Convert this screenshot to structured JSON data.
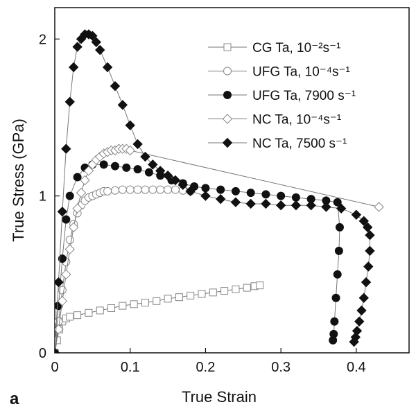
{
  "panel_label": "a",
  "chart_data": {
    "type": "scatter",
    "xlabel": "True Strain",
    "ylabel": "True Stress (GPa)",
    "xlim": [
      0,
      0.47
    ],
    "ylim": [
      0,
      2.2
    ],
    "xticks": [
      0,
      0.1,
      0.2,
      0.3,
      0.4
    ],
    "xtick_labels": [
      "0",
      "0.1",
      "0.2",
      "0.3",
      "0.4"
    ],
    "yticks": [
      0,
      1,
      2
    ],
    "ytick_labels": [
      "0",
      "1",
      "2"
    ],
    "grid": false,
    "legend_position": "top-right",
    "series": [
      {
        "name": "CG Ta, 10⁻²s⁻¹",
        "marker": "square-open",
        "x": [
          0.0,
          0.003,
          0.006,
          0.01,
          0.015,
          0.02,
          0.03,
          0.045,
          0.06,
          0.075,
          0.09,
          0.105,
          0.12,
          0.135,
          0.15,
          0.165,
          0.18,
          0.195,
          0.21,
          0.225,
          0.24,
          0.255,
          0.265,
          0.272
        ],
        "y": [
          0.0,
          0.08,
          0.15,
          0.2,
          0.22,
          0.23,
          0.24,
          0.255,
          0.27,
          0.285,
          0.3,
          0.31,
          0.32,
          0.33,
          0.345,
          0.355,
          0.365,
          0.375,
          0.385,
          0.395,
          0.405,
          0.415,
          0.425,
          0.43
        ]
      },
      {
        "name": "UFG Ta, 10⁻⁴s⁻¹",
        "marker": "circle-open",
        "x": [
          0.0,
          0.005,
          0.01,
          0.015,
          0.02,
          0.025,
          0.03,
          0.035,
          0.04,
          0.045,
          0.05,
          0.055,
          0.06,
          0.065,
          0.07,
          0.08,
          0.09,
          0.1,
          0.11,
          0.12,
          0.13,
          0.14,
          0.15,
          0.16,
          0.17,
          0.18
        ],
        "y": [
          0.0,
          0.2,
          0.4,
          0.58,
          0.72,
          0.82,
          0.89,
          0.94,
          0.97,
          0.99,
          1.0,
          1.01,
          1.02,
          1.03,
          1.03,
          1.035,
          1.04,
          1.04,
          1.04,
          1.04,
          1.04,
          1.04,
          1.04,
          1.04,
          1.035,
          1.03
        ]
      },
      {
        "name": "UFG Ta, 7900 s⁻¹",
        "marker": "circle-filled",
        "x": [
          0.0,
          0.005,
          0.01,
          0.015,
          0.02,
          0.03,
          0.04,
          0.05,
          0.065,
          0.08,
          0.095,
          0.11,
          0.125,
          0.14,
          0.155,
          0.17,
          0.185,
          0.2,
          0.22,
          0.24,
          0.26,
          0.28,
          0.3,
          0.32,
          0.34,
          0.36,
          0.375,
          0.378,
          0.377,
          0.375,
          0.373,
          0.371,
          0.37,
          0.369
        ],
        "y": [
          0.0,
          0.3,
          0.6,
          0.85,
          1.0,
          1.12,
          1.18,
          1.2,
          1.2,
          1.19,
          1.18,
          1.17,
          1.15,
          1.13,
          1.1,
          1.08,
          1.06,
          1.05,
          1.04,
          1.03,
          1.02,
          1.01,
          1.0,
          0.99,
          0.98,
          0.97,
          0.96,
          0.8,
          0.65,
          0.5,
          0.35,
          0.2,
          0.12,
          0.08
        ]
      },
      {
        "name": "NC Ta, 10⁻⁴s⁻¹",
        "marker": "diamond-open",
        "x": [
          0.0,
          0.005,
          0.01,
          0.015,
          0.02,
          0.025,
          0.03,
          0.035,
          0.04,
          0.045,
          0.05,
          0.055,
          0.06,
          0.065,
          0.07,
          0.075,
          0.08,
          0.085,
          0.09,
          0.095,
          0.1,
          0.43
        ],
        "y": [
          0.0,
          0.15,
          0.33,
          0.5,
          0.66,
          0.8,
          0.92,
          1.02,
          1.1,
          1.16,
          1.2,
          1.23,
          1.25,
          1.27,
          1.28,
          1.29,
          1.29,
          1.3,
          1.3,
          1.3,
          1.29,
          0.93
        ]
      },
      {
        "name": "NC Ta, 7500 s⁻¹",
        "marker": "diamond-filled",
        "x": [
          0.0,
          0.005,
          0.01,
          0.015,
          0.02,
          0.025,
          0.03,
          0.035,
          0.04,
          0.045,
          0.05,
          0.055,
          0.06,
          0.07,
          0.08,
          0.09,
          0.1,
          0.11,
          0.12,
          0.13,
          0.14,
          0.15,
          0.16,
          0.17,
          0.18,
          0.2,
          0.22,
          0.24,
          0.26,
          0.28,
          0.3,
          0.32,
          0.34,
          0.36,
          0.38,
          0.4,
          0.41,
          0.415,
          0.418,
          0.418,
          0.416,
          0.413,
          0.41,
          0.407,
          0.404,
          0.401,
          0.399,
          0.397
        ],
        "y": [
          0.0,
          0.45,
          0.9,
          1.3,
          1.6,
          1.82,
          1.95,
          2.0,
          2.03,
          2.03,
          2.02,
          1.98,
          1.93,
          1.82,
          1.7,
          1.58,
          1.45,
          1.33,
          1.25,
          1.2,
          1.16,
          1.13,
          1.1,
          1.07,
          1.03,
          1.0,
          0.98,
          0.96,
          0.95,
          0.95,
          0.94,
          0.94,
          0.94,
          0.93,
          0.92,
          0.88,
          0.84,
          0.8,
          0.75,
          0.65,
          0.55,
          0.45,
          0.35,
          0.27,
          0.2,
          0.14,
          0.1,
          0.07
        ]
      }
    ]
  }
}
